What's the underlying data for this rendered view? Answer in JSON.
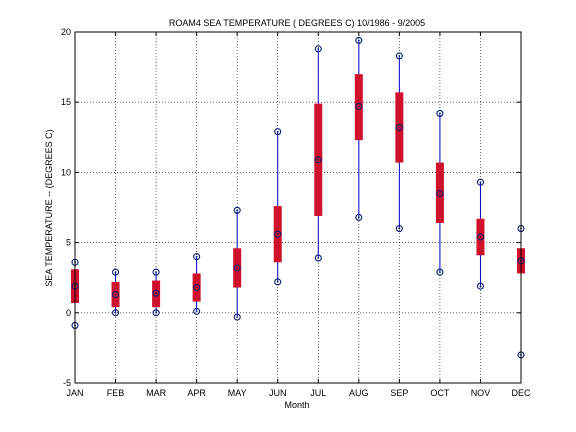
{
  "chart_data": {
    "type": "boxplot",
    "title": "ROAM4  SEA TEMPERATURE ( DEGREES C) 10/1986 - 9/2005",
    "xlabel": "Month",
    "ylabel": "SEA TEMPERATURE -- (DEGREES C)",
    "ylim": [
      -5,
      20
    ],
    "yticks": [
      -5,
      0,
      5,
      10,
      15,
      20
    ],
    "grid": true,
    "categories": [
      "JAN",
      "FEB",
      "MAR",
      "APR",
      "MAY",
      "JUN",
      "JUL",
      "AUG",
      "SEP",
      "OCT",
      "NOV",
      "DEC"
    ],
    "series": [
      {
        "min": -0.9,
        "q1": 0.7,
        "median": 1.9,
        "q3": 3.1,
        "max": 3.6
      },
      {
        "min": 0.0,
        "q1": 0.4,
        "median": 1.3,
        "q3": 2.2,
        "max": 2.9
      },
      {
        "min": 0.0,
        "q1": 0.4,
        "median": 1.4,
        "q3": 2.3,
        "max": 2.9
      },
      {
        "min": 0.1,
        "q1": 0.8,
        "median": 1.8,
        "q3": 2.8,
        "max": 4.0
      },
      {
        "min": -0.3,
        "q1": 1.8,
        "median": 3.2,
        "q3": 4.6,
        "max": 7.3
      },
      {
        "min": 2.2,
        "q1": 3.6,
        "median": 5.6,
        "q3": 7.6,
        "max": 12.9
      },
      {
        "min": 3.9,
        "q1": 6.9,
        "median": 10.9,
        "q3": 14.9,
        "max": 18.8
      },
      {
        "min": 6.8,
        "q1": 12.3,
        "median": 14.7,
        "q3": 17.0,
        "max": 19.4
      },
      {
        "min": 6.0,
        "q1": 10.7,
        "median": 13.2,
        "q3": 15.7,
        "max": 18.3
      },
      {
        "min": 2.9,
        "q1": 6.4,
        "median": 8.5,
        "q3": 10.7,
        "max": 14.2
      },
      {
        "min": 1.9,
        "q1": 4.1,
        "median": 5.4,
        "q3": 6.7,
        "max": 9.3
      },
      {
        "min": -3.0,
        "q1": 2.8,
        "median": 3.7,
        "q3": 4.6,
        "max": 6.0
      }
    ],
    "colors": {
      "box": "#d0112b",
      "whisker": "#0000cc",
      "marker": "#0a1a6e",
      "grid": "#000000"
    }
  }
}
